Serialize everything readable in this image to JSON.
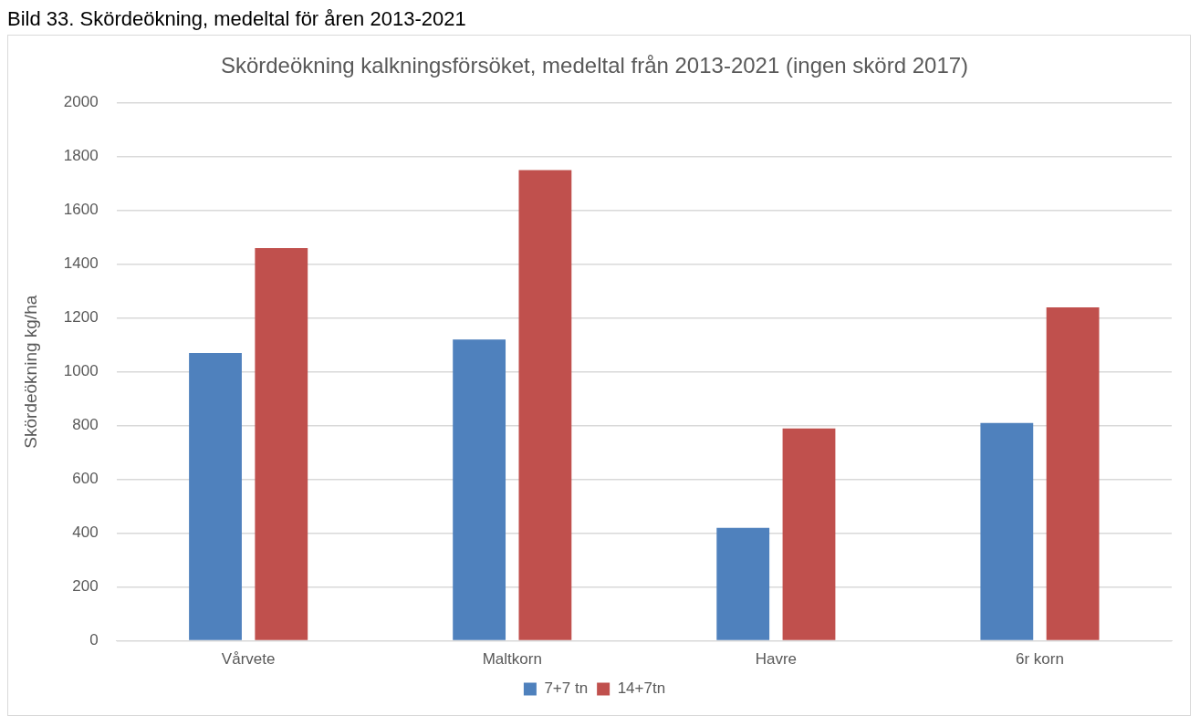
{
  "chart_data": {
    "type": "bar",
    "title": "Skördeökning kalkningsförsöket, medeltal från 2013-2021 (ingen skörd 2017)",
    "ylabel": "Skördeökning kg/ha",
    "categories": [
      "Vårvete",
      "Maltkorn",
      "Havre",
      "6r korn"
    ],
    "series": [
      {
        "name": "7+7 tn",
        "color": "#4f81bd",
        "values": [
          1070,
          1120,
          420,
          810
        ]
      },
      {
        "name": "14+7tn",
        "color": "#c0504d",
        "values": [
          1460,
          1750,
          790,
          1240
        ]
      }
    ],
    "ylim": [
      0,
      2000
    ],
    "yticks": [
      0,
      200,
      400,
      600,
      800,
      1000,
      1200,
      1400,
      1600,
      1800,
      2000
    ],
    "grid": "y",
    "legend": "bottom",
    "annotations": [
      "Bild 33. Skördeökning, medeltal för åren 2013-2021"
    ]
  }
}
